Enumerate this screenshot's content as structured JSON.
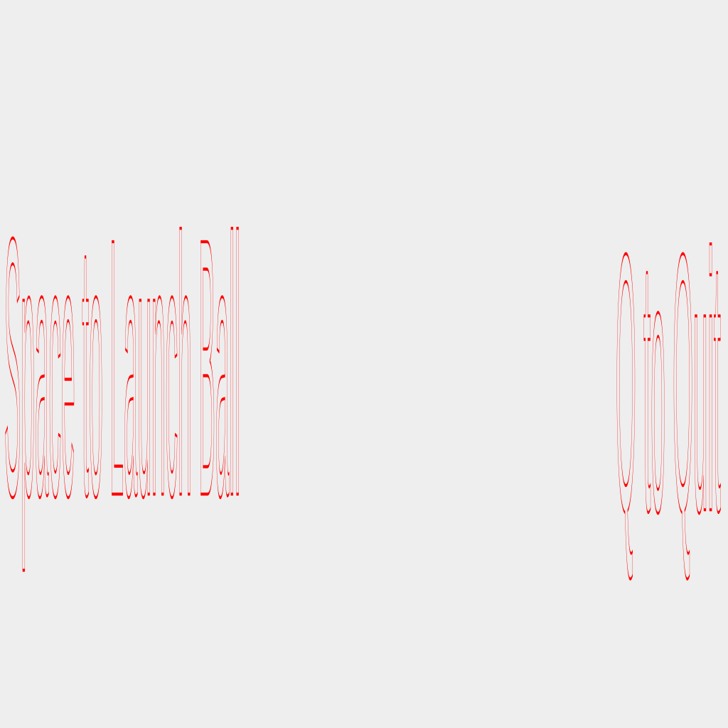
{
  "hud": {
    "launch_hint": "Space to Launch Ball",
    "quit_hint": "Q to Quit"
  },
  "colors": {
    "background": "#eeeeee",
    "hint_text": "#ff0000"
  }
}
